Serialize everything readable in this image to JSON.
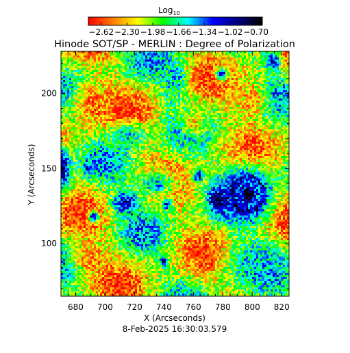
{
  "chart_data": {
    "type": "heatmap",
    "title": "Hinode SOT/SP - MERLIN : Degree of Polarization",
    "xlabel": "X (Arcseconds)",
    "ylabel": "Y (Arcseconds)",
    "timestamp": "8-Feb-2025 16:30:03.579",
    "xlim": [
      670,
      825
    ],
    "ylim": [
      65,
      228
    ],
    "x_ticks": [
      "680",
      "700",
      "720",
      "740",
      "760",
      "780",
      "800",
      "820"
    ],
    "x_tick_values": [
      680,
      700,
      720,
      740,
      760,
      780,
      800,
      820
    ],
    "y_ticks": [
      "100",
      "150",
      "200"
    ],
    "y_tick_values": [
      100,
      150,
      200
    ],
    "colorbar": {
      "label": "Log",
      "label_subscript": "10",
      "range": [
        -2.78,
        -0.62
      ],
      "ticks": [
        "−2.62",
        "−2.30",
        "−1.98",
        "−1.66",
        "−1.34",
        "−1.02",
        "−0.70"
      ],
      "tick_values": [
        -2.62,
        -2.3,
        -1.98,
        -1.66,
        -1.34,
        -1.02,
        -0.7
      ],
      "colors": [
        "#ff0000",
        "#ff7f00",
        "#ffff00",
        "#00ff00",
        "#00ffff",
        "#0000ff",
        "#000080",
        "#000000"
      ]
    },
    "features": [
      {
        "x": 797,
        "y": 133,
        "rx": 18,
        "ry": 20,
        "value": -0.85
      },
      {
        "x": 776,
        "y": 129,
        "rx": 5,
        "ry": 8,
        "value": -0.8
      },
      {
        "x": 670,
        "y": 150,
        "rx": 7,
        "ry": 16,
        "value": -0.85
      },
      {
        "x": 688,
        "y": 150,
        "rx": 3,
        "ry": 4,
        "value": -1.0
      },
      {
        "x": 714,
        "y": 127,
        "rx": 10,
        "ry": 8,
        "value": -1.05
      },
      {
        "x": 692,
        "y": 118,
        "rx": 4,
        "ry": 4,
        "value": -1.05
      },
      {
        "x": 740,
        "y": 88,
        "rx": 3,
        "ry": 4,
        "value": -1.0
      },
      {
        "x": 748,
        "y": 211,
        "rx": 5,
        "ry": 7,
        "value": -1.1
      },
      {
        "x": 779,
        "y": 213,
        "rx": 5,
        "ry": 5,
        "value": -1.1
      },
      {
        "x": 814,
        "y": 222,
        "rx": 6,
        "ry": 7,
        "value": -1.1
      },
      {
        "x": 763,
        "y": 145,
        "rx": 4,
        "ry": 5,
        "value": -1.1
      },
      {
        "x": 742,
        "y": 126,
        "rx": 4,
        "ry": 4,
        "value": -1.15
      },
      {
        "x": 715,
        "y": 172,
        "rx": 14,
        "ry": 9,
        "value": -1.5
      },
      {
        "x": 735,
        "y": 140,
        "rx": 16,
        "ry": 10,
        "value": -1.5
      },
      {
        "x": 800,
        "y": 88,
        "rx": 20,
        "ry": 16,
        "value": -1.55
      },
      {
        "x": 746,
        "y": 205,
        "rx": 9,
        "ry": 14,
        "value": -1.6
      },
      {
        "x": 800,
        "y": 196,
        "rx": 12,
        "ry": 15,
        "value": -2.45
      },
      {
        "x": 691,
        "y": 193,
        "rx": 15,
        "ry": 18,
        "value": -2.5
      },
      {
        "x": 690,
        "y": 90,
        "rx": 14,
        "ry": 13,
        "value": -2.45
      },
      {
        "x": 760,
        "y": 180,
        "rx": 10,
        "ry": 10,
        "value": -2.3
      }
    ]
  }
}
